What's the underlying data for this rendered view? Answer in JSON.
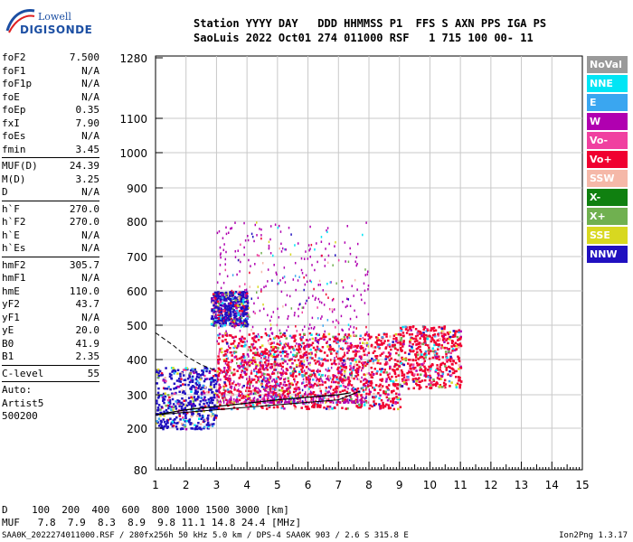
{
  "logo": {
    "line1": "Lowell",
    "line2": "DIGISONDE"
  },
  "header": {
    "labels": "Station YYYY DAY   DDD HHMMSS P1  FFS S AXN PPS IGA PS",
    "values": "SaoLuis 2022 Oct01 274 011000 RSF   1 715 100 00- 11"
  },
  "params": {
    "group1": [
      {
        "name": "foF2",
        "value": "7.500"
      },
      {
        "name": "foF1",
        "value": "N/A"
      },
      {
        "name": "foF1p",
        "value": "N/A"
      },
      {
        "name": "foE",
        "value": "N/A"
      },
      {
        "name": "foEp",
        "value": "0.35"
      },
      {
        "name": "fxI",
        "value": "7.90"
      },
      {
        "name": "foEs",
        "value": "N/A"
      },
      {
        "name": "fmin",
        "value": "3.45"
      }
    ],
    "group2": [
      {
        "name": "MUF(D)",
        "value": "24.39"
      },
      {
        "name": "M(D)",
        "value": "3.25"
      },
      {
        "name": "D",
        "value": "N/A"
      }
    ],
    "group3": [
      {
        "name": "h`F",
        "value": "270.0"
      },
      {
        "name": "h`F2",
        "value": "270.0"
      },
      {
        "name": "h`E",
        "value": "N/A"
      },
      {
        "name": "h`Es",
        "value": "N/A"
      }
    ],
    "group4": [
      {
        "name": "hmF2",
        "value": "305.7"
      },
      {
        "name": "hmF1",
        "value": "N/A"
      },
      {
        "name": "hmE",
        "value": "110.0"
      },
      {
        "name": "yF2",
        "value": "43.7"
      },
      {
        "name": "yF1",
        "value": "N/A"
      },
      {
        "name": "yE",
        "value": "20.0"
      },
      {
        "name": "B0",
        "value": "41.9"
      },
      {
        "name": "B1",
        "value": "2.35"
      }
    ],
    "group5": [
      {
        "name": "C-level",
        "value": "55"
      }
    ],
    "autoscale": [
      "Auto:",
      "Artist5",
      "500200"
    ]
  },
  "legend": [
    {
      "label": "NoVal",
      "color": "#9a9a9a"
    },
    {
      "label": "NNE",
      "color": "#00e5f5"
    },
    {
      "label": "E",
      "color": "#3aa6f0"
    },
    {
      "label": "W",
      "color": "#b000b0"
    },
    {
      "label": "Vo-",
      "color": "#f040a0"
    },
    {
      "label": "Vo+",
      "color": "#f00030"
    },
    {
      "label": "SSW",
      "color": "#f5b8a8"
    },
    {
      "label": "X-",
      "color": "#108010"
    },
    {
      "label": "X+",
      "color": "#70b050"
    },
    {
      "label": "SSE",
      "color": "#d8d820"
    },
    {
      "label": "NNW",
      "color": "#2010c0"
    }
  ],
  "bottom": {
    "d_row": "D    100  200  400  600  800 1000 1500 3000 [km]",
    "muf_row": "MUF   7.8  7.9  8.3  8.9  9.8 11.1 14.8 24.4 [MHz]"
  },
  "footer": {
    "left": "SAA0K_2022274011000.RSF / 280fx256h 50 kHz 5.0 km / DPS-4 SAA0K 903 / 2.6 S 315.8 E",
    "right": "Ion2Png 1.3.17"
  },
  "chart_data": {
    "type": "scatter",
    "title": "",
    "xlabel": "",
    "ylabel": "",
    "x_ticks": [
      1,
      2,
      3,
      4,
      5,
      6,
      7,
      8,
      9,
      10,
      11,
      12,
      13,
      14,
      15
    ],
    "xlim": [
      1,
      15
    ],
    "y_ticks": [
      80,
      200,
      300,
      400,
      500,
      600,
      700,
      800,
      900,
      1000,
      1100,
      1280
    ],
    "ylim": [
      80,
      1280
    ],
    "y_scale": "nonlinear (ionogram virtual height)",
    "grid": true,
    "legend_position": "right",
    "trace_upper_dashed": [
      [
        1.0,
        478
      ],
      [
        1.6,
        440
      ],
      [
        2.0,
        410
      ],
      [
        2.5,
        385
      ],
      [
        3.0,
        368
      ]
    ],
    "trace_profile": [
      [
        1.0,
        240
      ],
      [
        2.0,
        255
      ],
      [
        3.0,
        265
      ],
      [
        4.0,
        275
      ],
      [
        5.0,
        285
      ],
      [
        6.0,
        293
      ],
      [
        7.0,
        300
      ],
      [
        7.4,
        305.7
      ]
    ],
    "trace_lower": [
      [
        1.0,
        240
      ],
      [
        3.0,
        255
      ],
      [
        5.0,
        270
      ],
      [
        7.0,
        285
      ],
      [
        7.7,
        310
      ]
    ],
    "echo_regions": [
      {
        "x_from": 1.0,
        "x_to": 3.0,
        "y_from": 200,
        "y_to": 380,
        "dominant": "NNW"
      },
      {
        "x_from": 2.8,
        "x_to": 4.0,
        "y_from": 500,
        "y_to": 600,
        "dominant": "NNW"
      },
      {
        "x_from": 3.0,
        "x_to": 9.0,
        "y_from": 260,
        "y_to": 480,
        "dominant": "Vo+"
      },
      {
        "x_from": 3.0,
        "x_to": 8.0,
        "y_from": 280,
        "y_to": 800,
        "dominant": "W"
      },
      {
        "x_from": 9.0,
        "x_to": 11.0,
        "y_from": 320,
        "y_to": 500,
        "dominant": "Vo+"
      }
    ]
  }
}
